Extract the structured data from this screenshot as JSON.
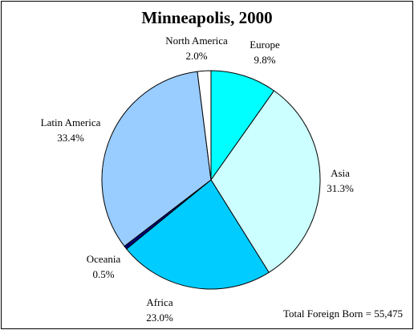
{
  "chart_data": {
    "type": "pie",
    "title": "Minneapolis, 2000",
    "footnote": "Total Foreign Born = 55,475",
    "slices": [
      {
        "label": "Europe",
        "value_label": "9.8%",
        "value": 9.8,
        "color": "#00FFFF"
      },
      {
        "label": "Asia",
        "value_label": "31.3%",
        "value": 31.3,
        "color": "#CCFFFF"
      },
      {
        "label": "Africa",
        "value_label": "23.0%",
        "value": 23.0,
        "color": "#00CCFF"
      },
      {
        "label": "Oceania",
        "value_label": "0.5%",
        "value": 0.5,
        "color": "#000080"
      },
      {
        "label": "Latin America",
        "value_label": "33.4%",
        "value": 33.4,
        "color": "#99CCFF"
      },
      {
        "label": "North America",
        "value_label": "2.0%",
        "value": 2.0,
        "color": "#FFFFFF"
      }
    ],
    "start": "top",
    "direction": "clockwise",
    "legend": "none"
  }
}
